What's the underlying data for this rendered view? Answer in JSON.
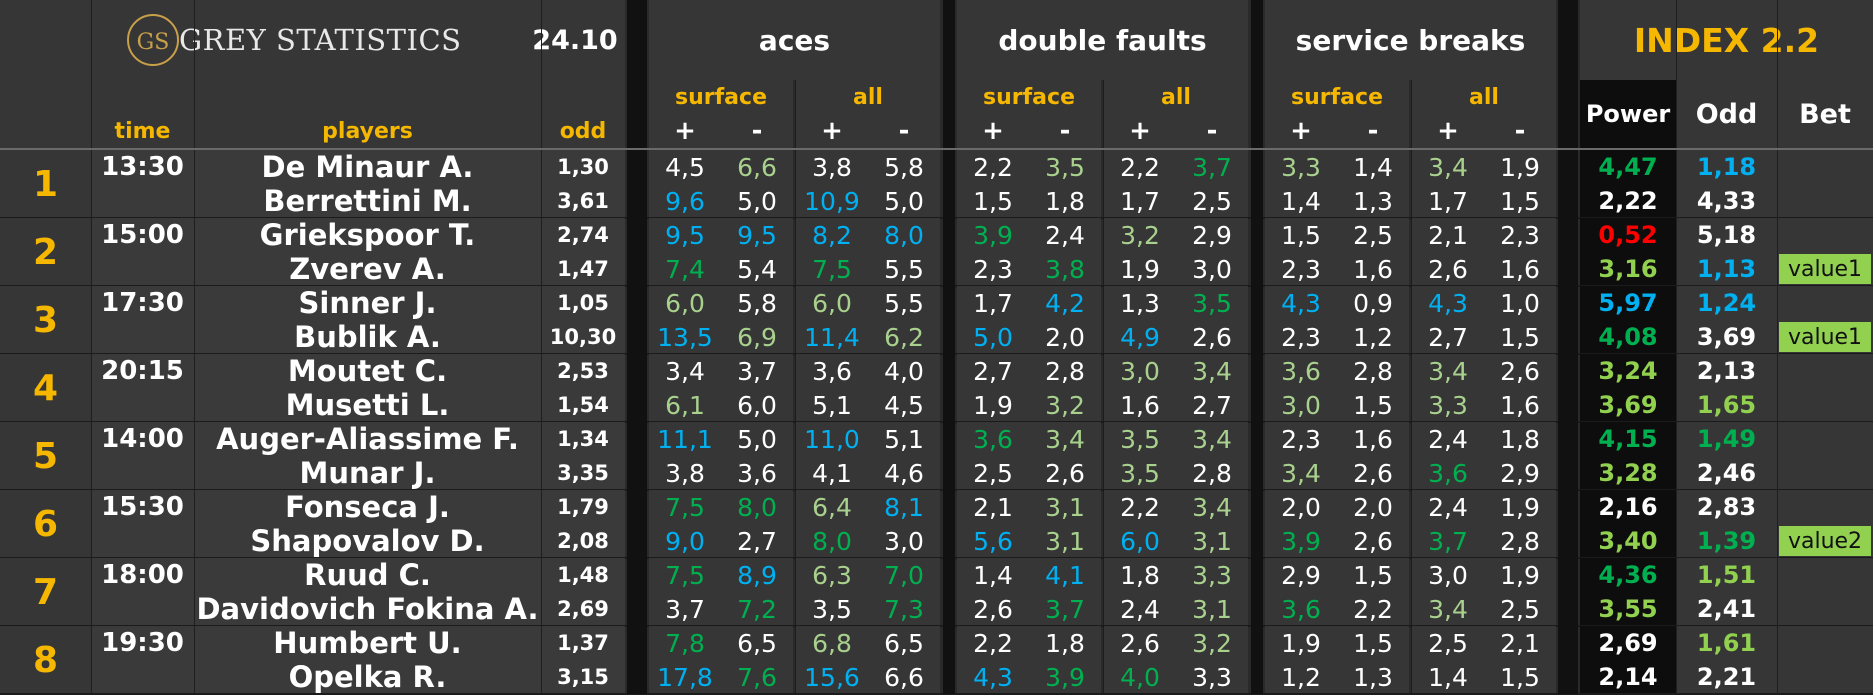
{
  "header": {
    "logo_mark": "GS",
    "logo_text": "GREY STATISTICS",
    "date": "24.10",
    "groups": [
      "aces",
      "double faults",
      "service breaks"
    ],
    "index_title": "INDEX 2.2",
    "col_time": "time",
    "col_players": "players",
    "col_odd": "odd",
    "sub_surface": "surface",
    "sub_all": "all",
    "plus": "+",
    "minus": "-",
    "col_power": "Power",
    "col_odd2": "Odd",
    "col_bet": "Bet"
  },
  "colors": {
    "white": "#ffffff",
    "green": "#00b050",
    "lightgreen": "#a9d18e",
    "blue": "#00b0f0",
    "red": "#ff0000",
    "yellowgreen": "#92d050",
    "gold": "#f5b700"
  },
  "matches": [
    {
      "num": "1",
      "time": "13:30",
      "players": [
        {
          "name": "De Minaur A.",
          "odd": "1,30",
          "stats": [
            [
              "4,5",
              "white"
            ],
            [
              "6,6",
              "lightgreen"
            ],
            [
              "3,8",
              "white"
            ],
            [
              "5,8",
              "white"
            ],
            [
              "2,2",
              "white"
            ],
            [
              "3,5",
              "lightgreen"
            ],
            [
              "2,2",
              "white"
            ],
            [
              "3,7",
              "green"
            ],
            [
              "3,3",
              "lightgreen"
            ],
            [
              "1,4",
              "white"
            ],
            [
              "3,4",
              "lightgreen"
            ],
            [
              "1,9",
              "white"
            ]
          ],
          "power": [
            "4,47",
            "green"
          ],
          "odd2": [
            "1,18",
            "blue"
          ],
          "bet": ""
        },
        {
          "name": "Berrettini M.",
          "odd": "3,61",
          "stats": [
            [
              "9,6",
              "blue"
            ],
            [
              "5,0",
              "white"
            ],
            [
              "10,9",
              "blue"
            ],
            [
              "5,0",
              "white"
            ],
            [
              "1,5",
              "white"
            ],
            [
              "1,8",
              "white"
            ],
            [
              "1,7",
              "white"
            ],
            [
              "2,5",
              "white"
            ],
            [
              "1,4",
              "white"
            ],
            [
              "1,3",
              "white"
            ],
            [
              "1,7",
              "white"
            ],
            [
              "1,5",
              "white"
            ]
          ],
          "power": [
            "2,22",
            "white"
          ],
          "odd2": [
            "4,33",
            "white"
          ],
          "bet": ""
        }
      ]
    },
    {
      "num": "2",
      "time": "15:00",
      "players": [
        {
          "name": "Griekspoor T.",
          "odd": "2,74",
          "stats": [
            [
              "9,5",
              "blue"
            ],
            [
              "9,5",
              "blue"
            ],
            [
              "8,2",
              "blue"
            ],
            [
              "8,0",
              "blue"
            ],
            [
              "3,9",
              "green"
            ],
            [
              "2,4",
              "white"
            ],
            [
              "3,2",
              "lightgreen"
            ],
            [
              "2,9",
              "white"
            ],
            [
              "1,5",
              "white"
            ],
            [
              "2,5",
              "white"
            ],
            [
              "2,1",
              "white"
            ],
            [
              "2,3",
              "white"
            ]
          ],
          "power": [
            "0,52",
            "red"
          ],
          "odd2": [
            "5,18",
            "white"
          ],
          "bet": ""
        },
        {
          "name": "Zverev A.",
          "odd": "1,47",
          "stats": [
            [
              "7,4",
              "green"
            ],
            [
              "5,4",
              "white"
            ],
            [
              "7,5",
              "green"
            ],
            [
              "5,5",
              "white"
            ],
            [
              "2,3",
              "white"
            ],
            [
              "3,8",
              "green"
            ],
            [
              "1,9",
              "white"
            ],
            [
              "3,0",
              "white"
            ],
            [
              "2,3",
              "white"
            ],
            [
              "1,6",
              "white"
            ],
            [
              "2,6",
              "white"
            ],
            [
              "1,6",
              "white"
            ]
          ],
          "power": [
            "3,16",
            "yellowgreen"
          ],
          "odd2": [
            "1,13",
            "blue"
          ],
          "bet": "value1"
        }
      ]
    },
    {
      "num": "3",
      "time": "17:30",
      "players": [
        {
          "name": "Sinner J.",
          "odd": "1,05",
          "stats": [
            [
              "6,0",
              "lightgreen"
            ],
            [
              "5,8",
              "white"
            ],
            [
              "6,0",
              "lightgreen"
            ],
            [
              "5,5",
              "white"
            ],
            [
              "1,7",
              "white"
            ],
            [
              "4,2",
              "blue"
            ],
            [
              "1,3",
              "white"
            ],
            [
              "3,5",
              "green"
            ],
            [
              "4,3",
              "blue"
            ],
            [
              "0,9",
              "white"
            ],
            [
              "4,3",
              "blue"
            ],
            [
              "1,0",
              "white"
            ]
          ],
          "power": [
            "5,97",
            "blue"
          ],
          "odd2": [
            "1,24",
            "blue"
          ],
          "bet": ""
        },
        {
          "name": "Bublik A.",
          "odd": "10,30",
          "stats": [
            [
              "13,5",
              "blue"
            ],
            [
              "6,9",
              "lightgreen"
            ],
            [
              "11,4",
              "blue"
            ],
            [
              "6,2",
              "lightgreen"
            ],
            [
              "5,0",
              "blue"
            ],
            [
              "2,0",
              "white"
            ],
            [
              "4,9",
              "blue"
            ],
            [
              "2,6",
              "white"
            ],
            [
              "2,3",
              "white"
            ],
            [
              "1,2",
              "white"
            ],
            [
              "2,7",
              "white"
            ],
            [
              "1,5",
              "white"
            ]
          ],
          "power": [
            "4,08",
            "green"
          ],
          "odd2": [
            "3,69",
            "white"
          ],
          "bet": "value1"
        }
      ]
    },
    {
      "num": "4",
      "time": "20:15",
      "players": [
        {
          "name": "Moutet C.",
          "odd": "2,53",
          "stats": [
            [
              "3,4",
              "white"
            ],
            [
              "3,7",
              "white"
            ],
            [
              "3,6",
              "white"
            ],
            [
              "4,0",
              "white"
            ],
            [
              "2,7",
              "white"
            ],
            [
              "2,8",
              "white"
            ],
            [
              "3,0",
              "lightgreen"
            ],
            [
              "3,4",
              "lightgreen"
            ],
            [
              "3,6",
              "lightgreen"
            ],
            [
              "2,8",
              "white"
            ],
            [
              "3,4",
              "lightgreen"
            ],
            [
              "2,6",
              "white"
            ]
          ],
          "power": [
            "3,24",
            "yellowgreen"
          ],
          "odd2": [
            "2,13",
            "white"
          ],
          "bet": ""
        },
        {
          "name": "Musetti L.",
          "odd": "1,54",
          "stats": [
            [
              "6,1",
              "lightgreen"
            ],
            [
              "6,0",
              "white"
            ],
            [
              "5,1",
              "white"
            ],
            [
              "4,5",
              "white"
            ],
            [
              "1,9",
              "white"
            ],
            [
              "3,2",
              "lightgreen"
            ],
            [
              "1,6",
              "white"
            ],
            [
              "2,7",
              "white"
            ],
            [
              "3,0",
              "lightgreen"
            ],
            [
              "1,5",
              "white"
            ],
            [
              "3,3",
              "lightgreen"
            ],
            [
              "1,6",
              "white"
            ]
          ],
          "power": [
            "3,69",
            "yellowgreen"
          ],
          "odd2": [
            "1,65",
            "yellowgreen"
          ],
          "bet": ""
        }
      ]
    },
    {
      "num": "5",
      "time": "14:00",
      "players": [
        {
          "name": "Auger-Aliassime F.",
          "odd": "1,34",
          "stats": [
            [
              "11,1",
              "blue"
            ],
            [
              "5,0",
              "white"
            ],
            [
              "11,0",
              "blue"
            ],
            [
              "5,1",
              "white"
            ],
            [
              "3,6",
              "green"
            ],
            [
              "3,4",
              "lightgreen"
            ],
            [
              "3,5",
              "lightgreen"
            ],
            [
              "3,4",
              "lightgreen"
            ],
            [
              "2,3",
              "white"
            ],
            [
              "1,6",
              "white"
            ],
            [
              "2,4",
              "white"
            ],
            [
              "1,8",
              "white"
            ]
          ],
          "power": [
            "4,15",
            "green"
          ],
          "odd2": [
            "1,49",
            "green"
          ],
          "bet": ""
        },
        {
          "name": "Munar J.",
          "odd": "3,35",
          "stats": [
            [
              "3,8",
              "white"
            ],
            [
              "3,6",
              "white"
            ],
            [
              "4,1",
              "white"
            ],
            [
              "4,6",
              "white"
            ],
            [
              "2,5",
              "white"
            ],
            [
              "2,6",
              "white"
            ],
            [
              "3,5",
              "lightgreen"
            ],
            [
              "2,8",
              "white"
            ],
            [
              "3,4",
              "lightgreen"
            ],
            [
              "2,6",
              "white"
            ],
            [
              "3,6",
              "green"
            ],
            [
              "2,9",
              "white"
            ]
          ],
          "power": [
            "3,28",
            "yellowgreen"
          ],
          "odd2": [
            "2,46",
            "white"
          ],
          "bet": ""
        }
      ]
    },
    {
      "num": "6",
      "time": "15:30",
      "players": [
        {
          "name": "Fonseca J.",
          "odd": "1,79",
          "stats": [
            [
              "7,5",
              "green"
            ],
            [
              "8,0",
              "green"
            ],
            [
              "6,4",
              "lightgreen"
            ],
            [
              "8,1",
              "blue"
            ],
            [
              "2,1",
              "white"
            ],
            [
              "3,1",
              "lightgreen"
            ],
            [
              "2,2",
              "white"
            ],
            [
              "3,4",
              "lightgreen"
            ],
            [
              "2,0",
              "white"
            ],
            [
              "2,0",
              "white"
            ],
            [
              "2,4",
              "white"
            ],
            [
              "1,9",
              "white"
            ]
          ],
          "power": [
            "2,16",
            "white"
          ],
          "odd2": [
            "2,83",
            "white"
          ],
          "bet": ""
        },
        {
          "name": "Shapovalov D.",
          "odd": "2,08",
          "stats": [
            [
              "9,0",
              "blue"
            ],
            [
              "2,7",
              "white"
            ],
            [
              "8,0",
              "green"
            ],
            [
              "3,0",
              "white"
            ],
            [
              "5,6",
              "blue"
            ],
            [
              "3,1",
              "lightgreen"
            ],
            [
              "6,0",
              "blue"
            ],
            [
              "3,1",
              "lightgreen"
            ],
            [
              "3,9",
              "green"
            ],
            [
              "2,6",
              "white"
            ],
            [
              "3,7",
              "green"
            ],
            [
              "2,8",
              "white"
            ]
          ],
          "power": [
            "3,40",
            "yellowgreen"
          ],
          "odd2": [
            "1,39",
            "green"
          ],
          "bet": "value2"
        }
      ]
    },
    {
      "num": "7",
      "time": "18:00",
      "players": [
        {
          "name": "Ruud C.",
          "odd": "1,48",
          "stats": [
            [
              "7,5",
              "green"
            ],
            [
              "8,9",
              "blue"
            ],
            [
              "6,3",
              "lightgreen"
            ],
            [
              "7,0",
              "green"
            ],
            [
              "1,4",
              "white"
            ],
            [
              "4,1",
              "blue"
            ],
            [
              "1,8",
              "white"
            ],
            [
              "3,3",
              "lightgreen"
            ],
            [
              "2,9",
              "white"
            ],
            [
              "1,5",
              "white"
            ],
            [
              "3,0",
              "white"
            ],
            [
              "1,9",
              "white"
            ]
          ],
          "power": [
            "4,36",
            "green"
          ],
          "odd2": [
            "1,51",
            "yellowgreen"
          ],
          "bet": ""
        },
        {
          "name": "Davidovich Fokina A.",
          "odd": "2,69",
          "stats": [
            [
              "3,7",
              "white"
            ],
            [
              "7,2",
              "green"
            ],
            [
              "3,5",
              "white"
            ],
            [
              "7,3",
              "green"
            ],
            [
              "2,6",
              "white"
            ],
            [
              "3,7",
              "green"
            ],
            [
              "2,4",
              "white"
            ],
            [
              "3,1",
              "lightgreen"
            ],
            [
              "3,6",
              "green"
            ],
            [
              "2,2",
              "white"
            ],
            [
              "3,4",
              "lightgreen"
            ],
            [
              "2,5",
              "white"
            ]
          ],
          "power": [
            "3,55",
            "yellowgreen"
          ],
          "odd2": [
            "2,41",
            "white"
          ],
          "bet": ""
        }
      ]
    },
    {
      "num": "8",
      "time": "19:30",
      "players": [
        {
          "name": "Humbert U.",
          "odd": "1,37",
          "stats": [
            [
              "7,8",
              "green"
            ],
            [
              "6,5",
              "white"
            ],
            [
              "6,8",
              "lightgreen"
            ],
            [
              "6,5",
              "white"
            ],
            [
              "2,2",
              "white"
            ],
            [
              "1,8",
              "white"
            ],
            [
              "2,6",
              "white"
            ],
            [
              "3,2",
              "lightgreen"
            ],
            [
              "1,9",
              "white"
            ],
            [
              "1,5",
              "white"
            ],
            [
              "2,5",
              "white"
            ],
            [
              "2,1",
              "white"
            ]
          ],
          "power": [
            "2,69",
            "white"
          ],
          "odd2": [
            "1,61",
            "yellowgreen"
          ],
          "bet": ""
        },
        {
          "name": "Opelka R.",
          "odd": "3,15",
          "stats": [
            [
              "17,8",
              "blue"
            ],
            [
              "7,6",
              "green"
            ],
            [
              "15,6",
              "blue"
            ],
            [
              "6,6",
              "white"
            ],
            [
              "4,3",
              "blue"
            ],
            [
              "3,9",
              "green"
            ],
            [
              "4,0",
              "green"
            ],
            [
              "3,3",
              "white"
            ],
            [
              "1,2",
              "white"
            ],
            [
              "1,3",
              "white"
            ],
            [
              "1,4",
              "white"
            ],
            [
              "1,5",
              "white"
            ]
          ],
          "power": [
            "2,14",
            "white"
          ],
          "odd2": [
            "2,21",
            "white"
          ],
          "bet": ""
        }
      ]
    }
  ]
}
